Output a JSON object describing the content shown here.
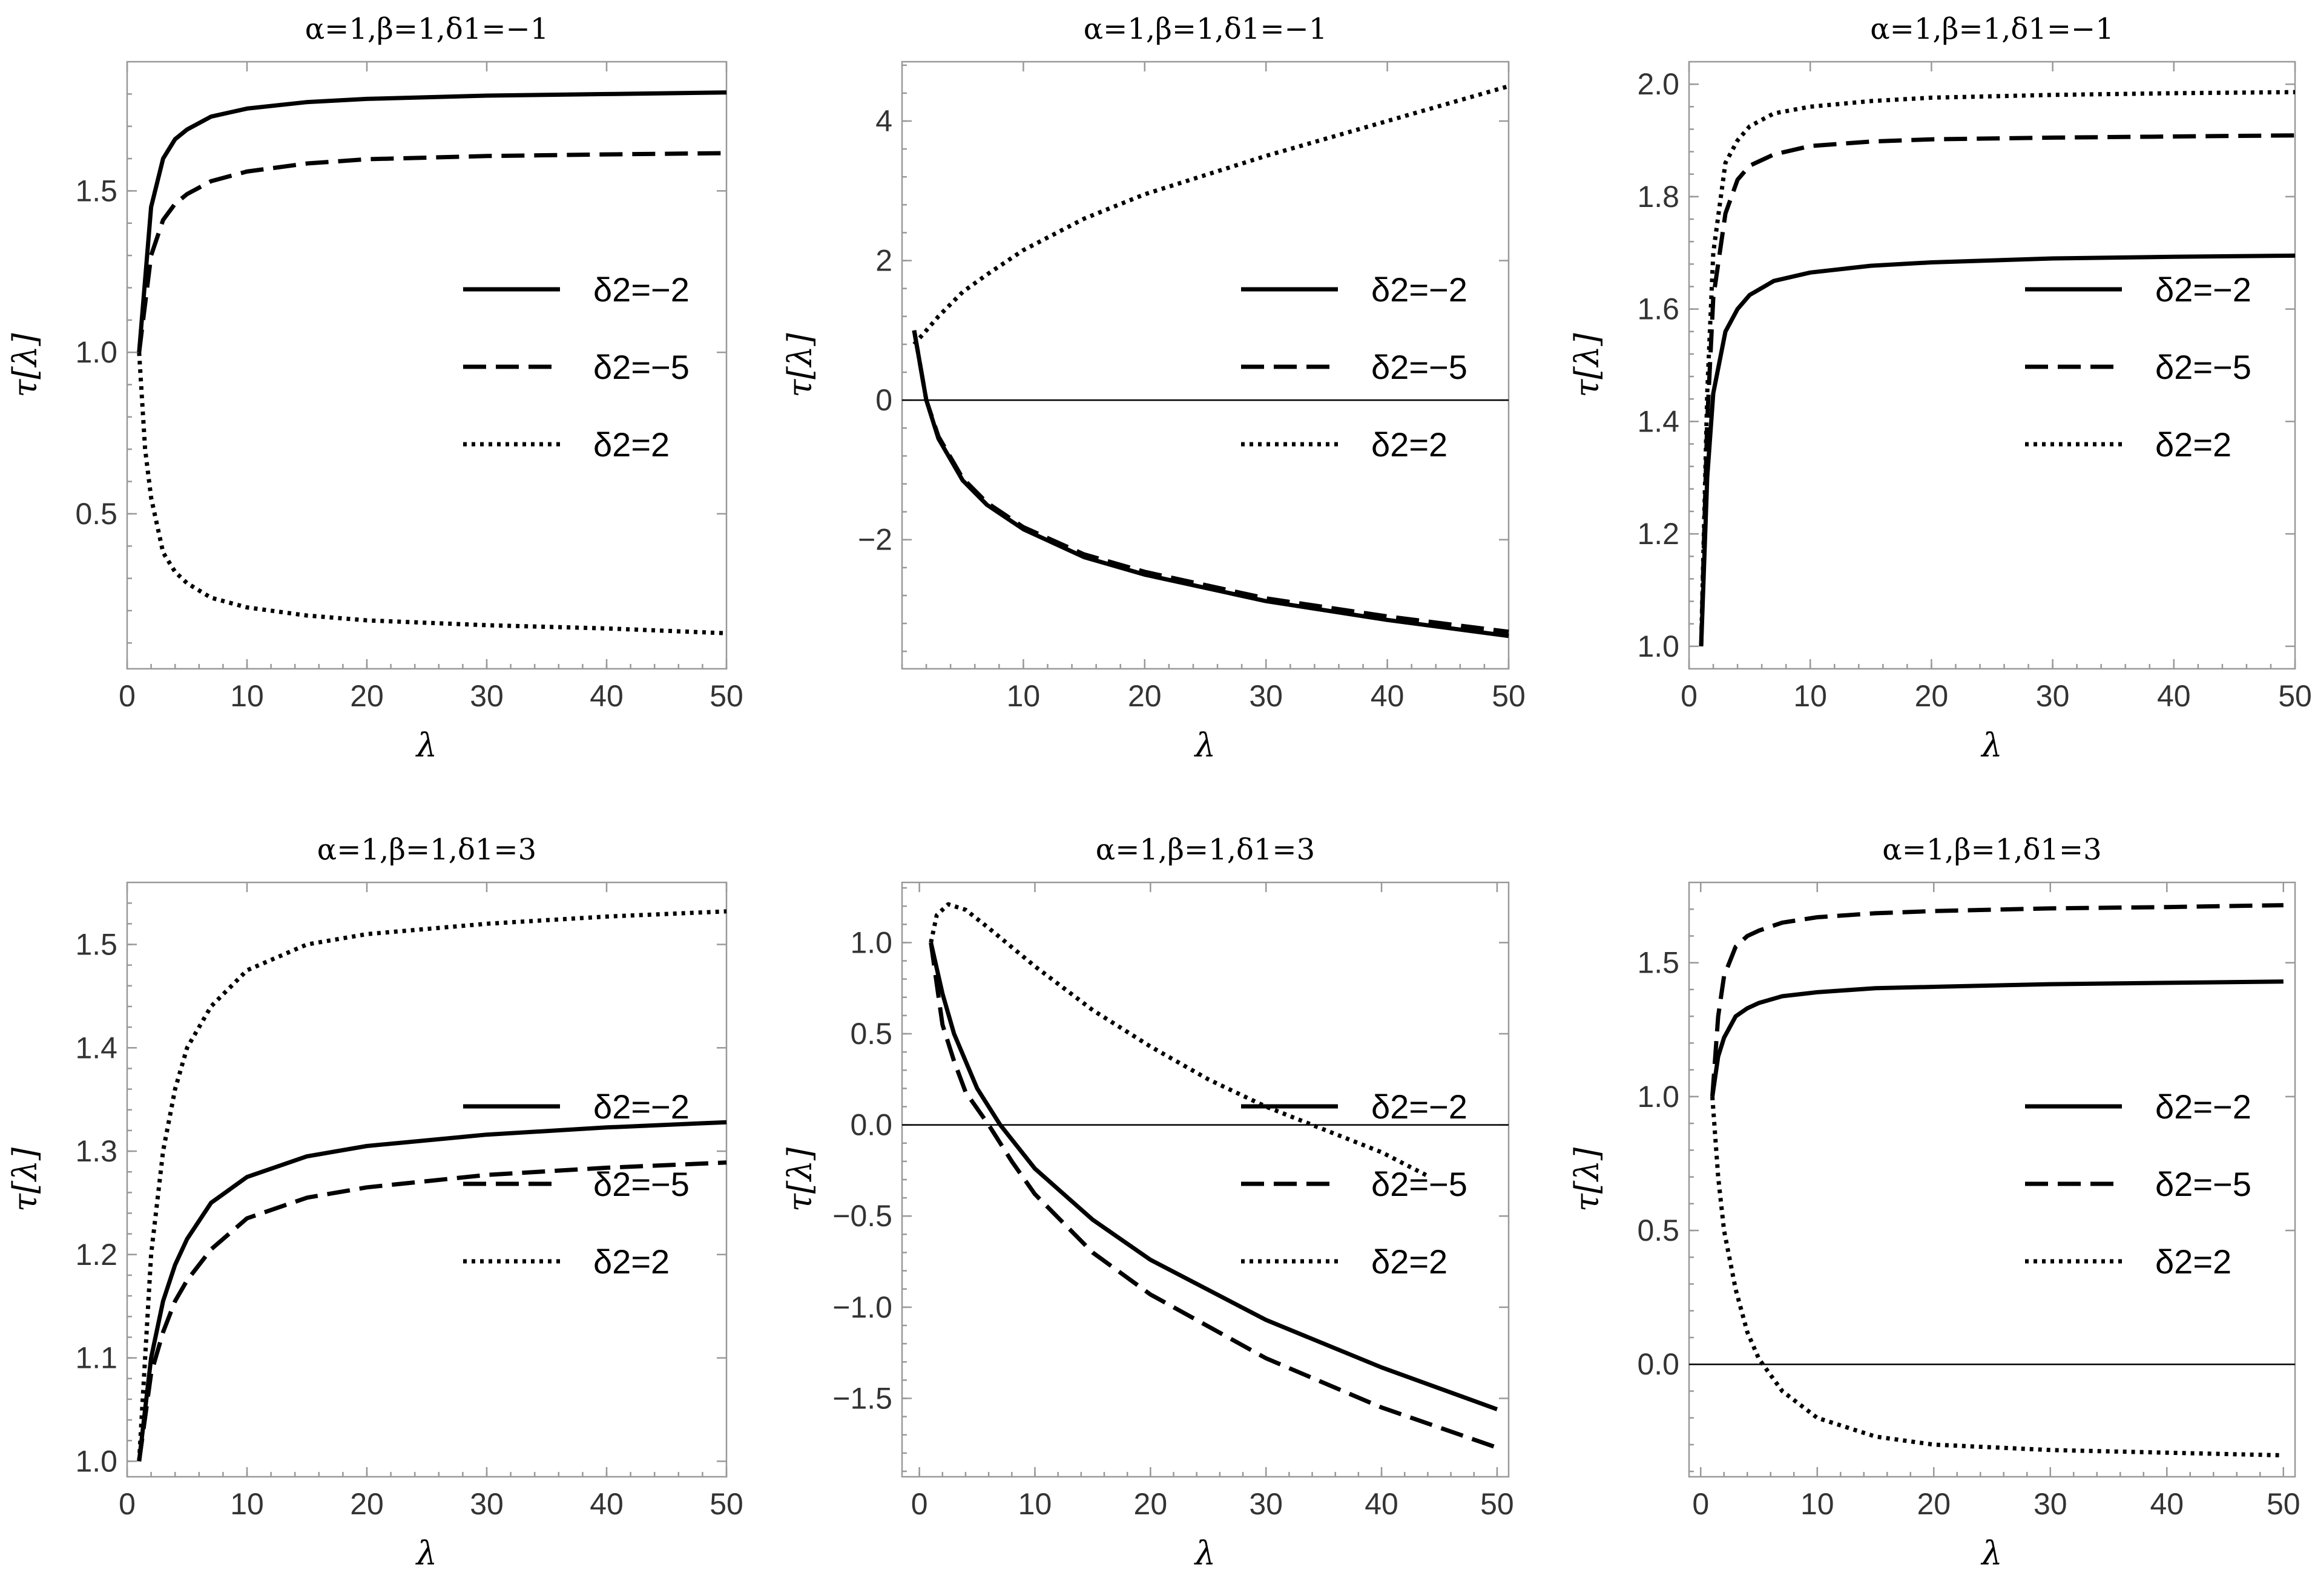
{
  "chart_data": [
    {
      "type": "line",
      "title": "α=1,β=1,δ1=−1",
      "xlabel": "λ",
      "ylabel": "τ[λ]",
      "xlim": [
        0,
        50
      ],
      "ylim": [
        0.02,
        1.9
      ],
      "xticks": [
        0,
        10,
        20,
        30,
        40,
        50
      ],
      "yticks": [
        0.5,
        1.0,
        1.5
      ],
      "ytick_labels": [
        "0.5",
        "1.0",
        "1.5"
      ],
      "legend_position": "center-right",
      "series": [
        {
          "name": "δ2=−2",
          "style": "solid",
          "x": [
            1,
            2,
            3,
            4,
            5,
            7,
            10,
            15,
            20,
            30,
            40,
            50
          ],
          "values": [
            1.0,
            1.45,
            1.6,
            1.66,
            1.69,
            1.73,
            1.755,
            1.775,
            1.785,
            1.795,
            1.8,
            1.805
          ]
        },
        {
          "name": "δ2=−5",
          "style": "dashed",
          "x": [
            1,
            2,
            3,
            4,
            5,
            7,
            10,
            15,
            20,
            30,
            40,
            50
          ],
          "values": [
            1.0,
            1.3,
            1.41,
            1.46,
            1.49,
            1.53,
            1.56,
            1.585,
            1.598,
            1.608,
            1.613,
            1.617
          ]
        },
        {
          "name": "δ2=2",
          "style": "dotted",
          "x": [
            1,
            1.5,
            2,
            3,
            4,
            5,
            7,
            10,
            15,
            20,
            30,
            40,
            50
          ],
          "values": [
            1.0,
            0.7,
            0.55,
            0.38,
            0.32,
            0.285,
            0.24,
            0.21,
            0.185,
            0.17,
            0.155,
            0.145,
            0.13
          ]
        }
      ]
    },
    {
      "type": "line",
      "title": "α=1,β=1,δ1=−1",
      "xlabel": "λ",
      "ylabel": "τ[λ]",
      "xlim": [
        0,
        50
      ],
      "ylim": [
        -3.85,
        4.85
      ],
      "xticks": [
        10,
        20,
        30,
        40,
        50
      ],
      "yticks": [
        -2,
        0,
        2,
        4
      ],
      "ytick_labels": [
        "−2",
        "0",
        "2",
        "4"
      ],
      "zero_line": true,
      "legend_position": "center-right",
      "series": [
        {
          "name": "δ2=−2",
          "style": "solid",
          "x": [
            1,
            2,
            3,
            5,
            7,
            10,
            15,
            20,
            30,
            40,
            50
          ],
          "values": [
            1.0,
            0.0,
            -0.55,
            -1.15,
            -1.5,
            -1.85,
            -2.25,
            -2.5,
            -2.88,
            -3.15,
            -3.38
          ]
        },
        {
          "name": "δ2=−5",
          "style": "dashed",
          "x": [
            1,
            2,
            3,
            5,
            7,
            10,
            15,
            20,
            30,
            40,
            50
          ],
          "values": [
            1.0,
            0.0,
            -0.52,
            -1.12,
            -1.47,
            -1.82,
            -2.21,
            -2.46,
            -2.84,
            -3.1,
            -3.32
          ]
        },
        {
          "name": "δ2=2",
          "style": "dotted",
          "x": [
            1,
            2,
            3,
            5,
            7,
            10,
            15,
            20,
            30,
            40,
            50
          ],
          "values": [
            0.8,
            1.0,
            1.2,
            1.55,
            1.8,
            2.15,
            2.6,
            2.95,
            3.5,
            4.0,
            4.5
          ]
        }
      ]
    },
    {
      "type": "line",
      "title": "α=1,β=1,δ1=−1",
      "xlabel": "λ",
      "ylabel": "τ[λ]",
      "xlim": [
        0,
        50
      ],
      "ylim": [
        0.96,
        2.04
      ],
      "xticks": [
        0,
        10,
        20,
        30,
        40,
        50
      ],
      "yticks": [
        1.0,
        1.2,
        1.4,
        1.6,
        1.8,
        2.0
      ],
      "ytick_labels": [
        "1.0",
        "1.2",
        "1.4",
        "1.6",
        "1.8",
        "2.0"
      ],
      "legend_position": "center-right",
      "series": [
        {
          "name": "δ2=−2",
          "style": "solid",
          "x": [
            1,
            1.5,
            2,
            3,
            4,
            5,
            7,
            10,
            15,
            20,
            30,
            40,
            50
          ],
          "values": [
            1.0,
            1.3,
            1.45,
            1.56,
            1.6,
            1.625,
            1.65,
            1.665,
            1.677,
            1.683,
            1.69,
            1.693,
            1.695
          ]
        },
        {
          "name": "δ2=−5",
          "style": "dashed",
          "x": [
            1,
            1.5,
            2,
            3,
            4,
            5,
            7,
            10,
            15,
            20,
            30,
            40,
            50
          ],
          "values": [
            1.0,
            1.4,
            1.62,
            1.77,
            1.83,
            1.855,
            1.875,
            1.89,
            1.898,
            1.902,
            1.905,
            1.907,
            1.909
          ]
        },
        {
          "name": "δ2=2",
          "style": "dotted",
          "x": [
            1,
            1.5,
            2,
            3,
            4,
            5,
            7,
            10,
            15,
            20,
            30,
            40,
            50
          ],
          "values": [
            1.0,
            1.45,
            1.7,
            1.86,
            1.9,
            1.925,
            1.948,
            1.96,
            1.97,
            1.976,
            1.981,
            1.984,
            1.986
          ]
        }
      ]
    },
    {
      "type": "line",
      "title": "α=1,β=1,δ1=3",
      "xlabel": "λ",
      "ylabel": "τ[λ]",
      "xlim": [
        0,
        50
      ],
      "ylim": [
        0.985,
        1.56
      ],
      "xticks": [
        0,
        10,
        20,
        30,
        40,
        50
      ],
      "yticks": [
        1.0,
        1.1,
        1.2,
        1.3,
        1.4,
        1.5
      ],
      "ytick_labels": [
        "1.0",
        "1.1",
        "1.2",
        "1.3",
        "1.4",
        "1.5"
      ],
      "legend_position": "center-right",
      "series": [
        {
          "name": "δ2=−2",
          "style": "solid",
          "x": [
            1,
            2,
            3,
            4,
            5,
            7,
            10,
            15,
            20,
            30,
            40,
            50
          ],
          "values": [
            1.0,
            1.1,
            1.155,
            1.19,
            1.215,
            1.25,
            1.275,
            1.295,
            1.305,
            1.316,
            1.323,
            1.328
          ]
        },
        {
          "name": "δ2=−5",
          "style": "dashed",
          "x": [
            1,
            2,
            3,
            4,
            5,
            7,
            10,
            15,
            20,
            30,
            40,
            50
          ],
          "values": [
            1.0,
            1.085,
            1.125,
            1.155,
            1.175,
            1.205,
            1.235,
            1.255,
            1.265,
            1.277,
            1.284,
            1.289
          ]
        },
        {
          "name": "δ2=2",
          "style": "dotted",
          "x": [
            1,
            2,
            3,
            4,
            5,
            7,
            10,
            15,
            20,
            30,
            40,
            50
          ],
          "values": [
            1.0,
            1.2,
            1.3,
            1.36,
            1.4,
            1.44,
            1.475,
            1.5,
            1.51,
            1.52,
            1.527,
            1.532
          ]
        }
      ]
    },
    {
      "type": "line",
      "title": "α=1,β=1,δ1=3",
      "xlabel": "λ",
      "ylabel": "τ[λ]",
      "xlim": [
        -1.5,
        51
      ],
      "ylim": [
        -1.93,
        1.33
      ],
      "xticks": [
        0,
        10,
        20,
        30,
        40,
        50
      ],
      "yticks": [
        -1.5,
        -1.0,
        -0.5,
        0.0,
        0.5,
        1.0
      ],
      "ytick_labels": [
        "−1.5",
        "−1.0",
        "−0.5",
        "0.0",
        "0.5",
        "1.0"
      ],
      "zero_line": true,
      "legend_position": "center-right",
      "series": [
        {
          "name": "δ2=−2",
          "style": "solid",
          "x": [
            1,
            2,
            3,
            5,
            7,
            10,
            15,
            20,
            30,
            40,
            50
          ],
          "values": [
            1.0,
            0.72,
            0.5,
            0.2,
            0.0,
            -0.24,
            -0.52,
            -0.74,
            -1.07,
            -1.33,
            -1.56
          ]
        },
        {
          "name": "δ2=−5",
          "style": "dashed",
          "x": [
            1,
            2,
            3,
            4,
            6,
            8,
            10,
            15,
            20,
            30,
            40,
            50
          ],
          "values": [
            1.0,
            0.55,
            0.35,
            0.18,
            0.0,
            -0.2,
            -0.38,
            -0.7,
            -0.93,
            -1.28,
            -1.55,
            -1.77
          ]
        },
        {
          "name": "δ2=2",
          "style": "dotted",
          "x": [
            1,
            1.5,
            2.5,
            4,
            6,
            10,
            15,
            20,
            25,
            30,
            34,
            40,
            44
          ],
          "values": [
            1.0,
            1.15,
            1.21,
            1.18,
            1.08,
            0.87,
            0.63,
            0.43,
            0.25,
            0.1,
            0.0,
            -0.15,
            -0.28
          ]
        }
      ]
    },
    {
      "type": "line",
      "title": "α=1,β=1,δ1=3",
      "xlabel": "λ",
      "ylabel": "τ[λ]",
      "xlim": [
        -1,
        51
      ],
      "ylim": [
        -0.42,
        1.8
      ],
      "xticks": [
        0,
        10,
        20,
        30,
        40,
        50
      ],
      "yticks": [
        0.0,
        0.5,
        1.0,
        1.5
      ],
      "ytick_labels": [
        "0.0",
        "0.5",
        "1.0",
        "1.5"
      ],
      "zero_line": true,
      "legend_position": "center-right",
      "series": [
        {
          "name": "δ2=−2",
          "style": "solid",
          "x": [
            1,
            1.5,
            2,
            3,
            4,
            5,
            7,
            10,
            15,
            20,
            30,
            40,
            50
          ],
          "values": [
            1.0,
            1.15,
            1.22,
            1.3,
            1.33,
            1.35,
            1.375,
            1.39,
            1.405,
            1.41,
            1.42,
            1.425,
            1.43
          ]
        },
        {
          "name": "δ2=−5",
          "style": "dashed",
          "x": [
            1,
            1.5,
            2,
            3,
            4,
            5,
            7,
            10,
            15,
            20,
            30,
            40,
            50
          ],
          "values": [
            1.0,
            1.3,
            1.45,
            1.56,
            1.6,
            1.62,
            1.65,
            1.67,
            1.685,
            1.693,
            1.703,
            1.708,
            1.715
          ]
        },
        {
          "name": "δ2=2",
          "style": "dotted",
          "x": [
            1,
            1.5,
            2,
            3,
            4,
            5,
            7,
            10,
            15,
            20,
            30,
            40,
            50
          ],
          "values": [
            1.0,
            0.7,
            0.5,
            0.28,
            0.12,
            0.02,
            -0.1,
            -0.2,
            -0.27,
            -0.3,
            -0.32,
            -0.33,
            -0.34
          ]
        }
      ]
    }
  ]
}
